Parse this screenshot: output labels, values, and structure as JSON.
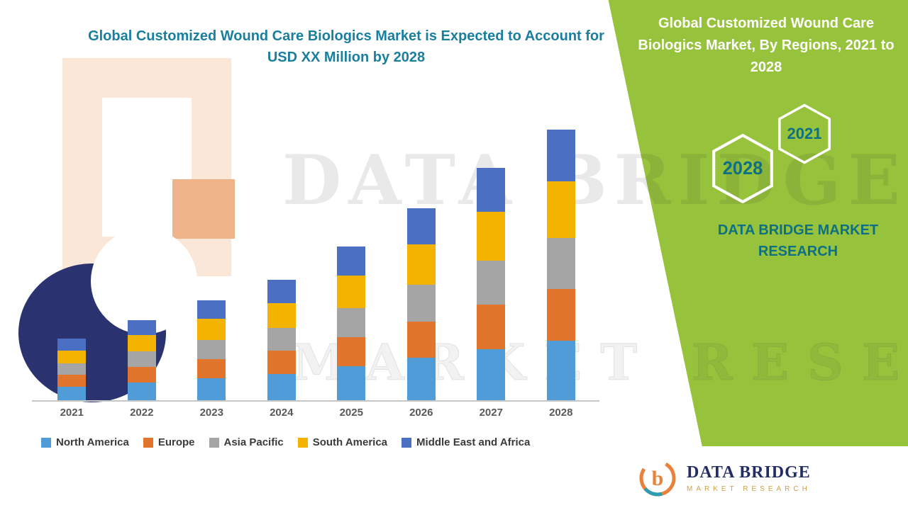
{
  "colors": {
    "panel_green": "#97c23c",
    "title_teal": "#1a7f9e",
    "accent_teal": "#0d7183",
    "logo_navy": "#232d64",
    "logo_gold": "#c9a24a"
  },
  "left_panel": {
    "title": "Global Customized Wound Care Biologics Market is Expected to Account for USD XX Million by 2028"
  },
  "right_panel": {
    "title": "Global Customized Wound Care Biologics Market, By Regions, 2021 to 2028",
    "hexagon_years": [
      "2028",
      "2021"
    ],
    "brand_text": "DATA BRIDGE MARKET RESEARCH"
  },
  "watermark": {
    "line1": "DATA BRIDGE",
    "line2": "MARKET RESEARCH"
  },
  "logo_box": {
    "name": "DATA BRIDGE",
    "subtitle": "MARKET RESEARCH"
  },
  "chart_data": {
    "type": "stacked-bar",
    "title": "Global Customized Wound Care Biologics Market is Expected to Account for USD XX Million by 2028",
    "xlabel": "",
    "ylabel": "",
    "ylim": [
      0,
      46
    ],
    "grid": false,
    "legend_position": "bottom",
    "categories": [
      "2021",
      "2022",
      "2023",
      "2024",
      "2025",
      "2026",
      "2027",
      "2028"
    ],
    "series": [
      {
        "name": "North America",
        "color": "#4f9cd8",
        "values": [
          2.2,
          2.9,
          3.6,
          4.3,
          5.5,
          6.9,
          8.3,
          9.7
        ]
      },
      {
        "name": "Europe",
        "color": "#e0752b",
        "values": [
          1.9,
          2.5,
          3.1,
          3.7,
          4.7,
          5.9,
          7.2,
          8.4
        ]
      },
      {
        "name": "Asia Pacific",
        "color": "#a5a5a5",
        "values": [
          1.9,
          2.5,
          3.1,
          3.7,
          4.8,
          5.9,
          7.2,
          8.3
        ]
      },
      {
        "name": "South America",
        "color": "#f5b301",
        "values": [
          2.1,
          2.7,
          3.4,
          4.1,
          5.2,
          6.6,
          7.9,
          9.2
        ]
      },
      {
        "name": "Middle East and Africa",
        "color": "#4a6fc3",
        "values": [
          1.9,
          2.4,
          3.0,
          3.7,
          4.8,
          5.9,
          7.1,
          8.4
        ]
      }
    ],
    "totals": [
      10.0,
      13.0,
      16.2,
      19.5,
      25.0,
      31.2,
      37.7,
      44.0
    ],
    "value_unit": "USD Million (XX)"
  }
}
